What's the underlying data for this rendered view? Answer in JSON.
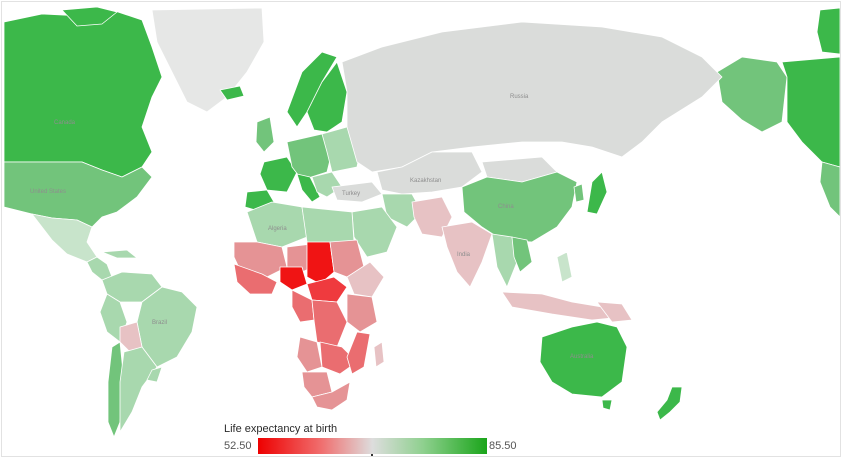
{
  "legend": {
    "title": "Life expectancy at birth",
    "min": "52.50",
    "max": "85.50",
    "low_color": "#ee0000",
    "mid_color": "#dddddd",
    "high_color": "#1aa51a"
  },
  "labels": {
    "canada": "Canada",
    "usa": "United States",
    "russia": "Russia",
    "china": "China",
    "turkey": "Turkey",
    "brazil": "Brazil",
    "australia": "Australia",
    "algeria": "Algeria",
    "india": "India",
    "kazakhstan": "Kazakhstan"
  },
  "colors": {
    "green_strong": "#3cb84a",
    "green_mid": "#72c47b",
    "green_light": "#a8d8ae",
    "green_pale": "#c8e4cb",
    "neutral": "#dadcda",
    "pink_pale": "#e7c2c4",
    "pink": "#e59395",
    "red_mid": "#ea6d70",
    "red_strong": "#ef3a3e",
    "red_max": "#f01414",
    "no_data": "#e6e7e6"
  }
}
